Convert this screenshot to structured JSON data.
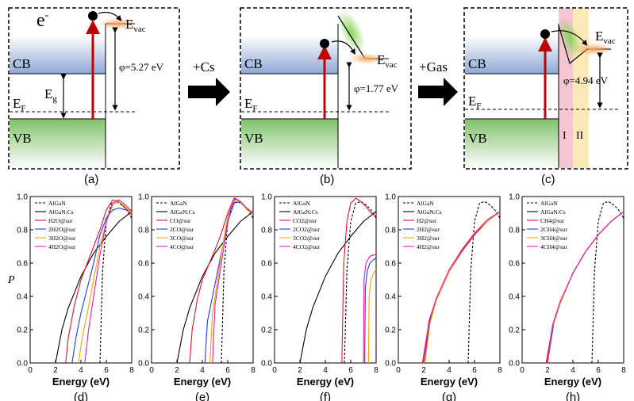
{
  "diagrams": {
    "a": {
      "caption": "(a)",
      "cb": "CB",
      "vb": "VB",
      "electron": "e",
      "electron_sup": "-",
      "evac_main": "E",
      "evac_sub": "vac",
      "ef_main": "E",
      "ef_sub": "F",
      "eg_main": "E",
      "eg_sub": "g",
      "phi": "φ=5.27 eV"
    },
    "b": {
      "caption": "(b)",
      "cb": "CB",
      "vb": "VB",
      "evac_main": "E",
      "evac_sub": "vac",
      "ef_main": "E",
      "ef_sub": "F",
      "phi": "φ=1.77 eV"
    },
    "c": {
      "caption": "(c)",
      "cb": "CB",
      "vb": "VB",
      "evac_main": "E",
      "evac_sub": "vac",
      "ef_main": "E",
      "ef_sub": "F",
      "phi": "φ=4.94 eV",
      "region1": "I",
      "region2": "II"
    },
    "arrow1_label": "+Cs",
    "arrow2_label": "+Gas"
  },
  "colors": {
    "cb_band": "#8ea9d6",
    "vb_band": "#8cc97a",
    "excitation_arrow": "#c00000",
    "evac_glow": "#f6a25a",
    "region1_fill": "#f2b8c6",
    "region2_fill": "#fbe3a6",
    "series_black": "#000000",
    "series_red": "#e8112d",
    "series_blue": "#1f3df0",
    "series_orange": "#f5a300",
    "series_magenta": "#e81bb0"
  },
  "chart_data": [
    {
      "type": "line",
      "panel": "d",
      "caption": "(d)",
      "xlabel": "Energy (eV)",
      "ylabel": "P",
      "xlim": [
        0,
        8
      ],
      "ylim": [
        0,
        1.0
      ],
      "xticks": [
        "0",
        "2",
        "4",
        "6",
        "8"
      ],
      "yticks": [
        "0.0",
        "0.2",
        "0.4",
        "0.6",
        "0.8",
        "1.0"
      ],
      "legend": [
        "AlGaN",
        "AlGaN:Cs",
        "H2O@sur",
        "2H2O@sur",
        "3H2O@sur",
        "4H2O@sur"
      ],
      "series": [
        {
          "name": "AlGaN",
          "style": "dashed",
          "color": "#000000",
          "x": [
            5.5,
            5.7,
            6.0,
            6.4,
            6.8,
            7.2,
            7.6,
            8.0
          ],
          "y": [
            0.0,
            0.55,
            0.85,
            0.96,
            0.97,
            0.95,
            0.92,
            0.87
          ]
        },
        {
          "name": "AlGaN:Cs",
          "color": "#000000",
          "x": [
            2.0,
            2.5,
            3.0,
            4.0,
            5.0,
            6.0,
            7.0,
            8.0
          ],
          "y": [
            0.0,
            0.2,
            0.33,
            0.52,
            0.66,
            0.76,
            0.85,
            0.91
          ]
        },
        {
          "name": "H2O@sur",
          "color": "#e8112d",
          "x": [
            2.8,
            3.0,
            3.5,
            4.0,
            5.0,
            5.5,
            6.0,
            6.5,
            7.0,
            7.5,
            8.0
          ],
          "y": [
            0.0,
            0.15,
            0.35,
            0.5,
            0.7,
            0.8,
            0.92,
            0.98,
            0.97,
            0.93,
            0.89
          ]
        },
        {
          "name": "2H2O@sur",
          "color": "#1f3df0",
          "x": [
            3.3,
            3.6,
            4.0,
            5.0,
            5.5,
            6.0,
            6.5,
            7.0,
            7.5,
            8.0
          ],
          "y": [
            0.0,
            0.15,
            0.3,
            0.6,
            0.77,
            0.87,
            0.92,
            0.93,
            0.92,
            0.92
          ]
        },
        {
          "name": "3H2O@sur",
          "color": "#f5a300",
          "x": [
            3.8,
            4.1,
            4.5,
            5.0,
            5.5,
            6.0,
            6.5,
            7.0,
            7.5,
            8.0
          ],
          "y": [
            0.0,
            0.15,
            0.3,
            0.5,
            0.7,
            0.85,
            0.95,
            0.97,
            0.94,
            0.9
          ]
        },
        {
          "name": "4H2O@sur",
          "color": "#e81bb0",
          "x": [
            4.3,
            4.6,
            5.0,
            5.5,
            6.0,
            6.5,
            7.0,
            7.5,
            8.0
          ],
          "y": [
            0.0,
            0.2,
            0.4,
            0.65,
            0.85,
            0.96,
            0.98,
            0.95,
            0.91
          ]
        }
      ]
    },
    {
      "type": "line",
      "panel": "e",
      "caption": "(e)",
      "xlabel": "Energy (eV)",
      "ylabel": "",
      "xlim": [
        0,
        8
      ],
      "ylim": [
        0,
        1.0
      ],
      "xticks": [
        "0",
        "2",
        "4",
        "6",
        "8"
      ],
      "yticks": [
        "0.0",
        "0.2",
        "0.4",
        "0.6",
        "0.8",
        "1.0"
      ],
      "legend": [
        "AlGaN",
        "AlGaN:Cs",
        "CO@sur",
        "2CO@sur",
        "3CO@sur",
        "4CO@sur"
      ],
      "series": [
        {
          "name": "AlGaN",
          "style": "dashed",
          "color": "#000000",
          "x": [
            5.5,
            5.7,
            6.0,
            6.4,
            6.8,
            7.2,
            7.6,
            8.0
          ],
          "y": [
            0.0,
            0.55,
            0.85,
            0.96,
            0.97,
            0.95,
            0.92,
            0.87
          ]
        },
        {
          "name": "AlGaN:Cs",
          "color": "#000000",
          "x": [
            2.0,
            2.5,
            3.0,
            4.0,
            5.0,
            6.0,
            7.0,
            8.0
          ],
          "y": [
            0.0,
            0.2,
            0.33,
            0.52,
            0.66,
            0.76,
            0.85,
            0.91
          ]
        },
        {
          "name": "CO@sur",
          "color": "#e8112d",
          "x": [
            3.0,
            3.2,
            3.6,
            4.0,
            5.0,
            5.5,
            6.0,
            6.5,
            7.0,
            7.5,
            8.0
          ],
          "y": [
            0.0,
            0.2,
            0.38,
            0.5,
            0.68,
            0.78,
            0.9,
            0.99,
            0.97,
            0.93,
            0.9
          ]
        },
        {
          "name": "2CO@sur",
          "color": "#1f3df0",
          "x": [
            4.2,
            4.4,
            4.8,
            5.2,
            5.6,
            6.0,
            6.5,
            7.0,
            7.5,
            8.0
          ],
          "y": [
            0.0,
            0.25,
            0.4,
            0.55,
            0.7,
            0.85,
            0.96,
            0.97,
            0.93,
            0.9
          ]
        },
        {
          "name": "3CO@sur",
          "color": "#f5a300",
          "x": [
            4.6,
            4.8,
            5.2,
            5.6,
            6.0,
            6.5,
            7.0,
            7.5,
            8.0
          ],
          "y": [
            0.0,
            0.3,
            0.5,
            0.7,
            0.88,
            0.98,
            0.97,
            0.92,
            0.9
          ]
        },
        {
          "name": "4CO@sur",
          "color": "#e81bb0",
          "x": [
            4.8,
            5.0,
            5.4,
            5.8,
            6.2,
            6.6,
            7.0,
            7.5,
            8.0
          ],
          "y": [
            0.0,
            0.35,
            0.55,
            0.75,
            0.92,
            0.99,
            0.97,
            0.93,
            0.9
          ]
        }
      ]
    },
    {
      "type": "line",
      "panel": "f",
      "caption": "(f)",
      "xlabel": "Energy (eV)",
      "ylabel": "",
      "xlim": [
        0,
        8
      ],
      "ylim": [
        0,
        1.0
      ],
      "xticks": [
        "0",
        "2",
        "4",
        "6",
        "8"
      ],
      "yticks": [
        "0.0",
        "0.2",
        "0.4",
        "0.6",
        "0.8",
        "1.0"
      ],
      "legend": [
        "AlGaN",
        "AlGaN:Cs",
        "CO2@sur",
        "2CO2@sur",
        "3CO2@sur",
        "4CO2@sur"
      ],
      "series": [
        {
          "name": "AlGaN",
          "style": "dashed",
          "color": "#000000",
          "x": [
            5.5,
            5.7,
            6.0,
            6.4,
            6.8,
            7.2,
            7.6,
            8.0
          ],
          "y": [
            0.0,
            0.55,
            0.85,
            0.96,
            0.97,
            0.95,
            0.92,
            0.87
          ]
        },
        {
          "name": "AlGaN:Cs",
          "color": "#000000",
          "x": [
            2.0,
            2.5,
            3.0,
            4.0,
            5.0,
            6.0,
            7.0,
            8.0
          ],
          "y": [
            0.0,
            0.2,
            0.33,
            0.52,
            0.66,
            0.76,
            0.85,
            0.91
          ]
        },
        {
          "name": "CO2@sur",
          "color": "#e8112d",
          "x": [
            5.3,
            5.45,
            5.7,
            6.0,
            6.4,
            6.8,
            7.2,
            7.6,
            8.0
          ],
          "y": [
            0.0,
            0.6,
            0.85,
            0.96,
            0.99,
            0.97,
            0.94,
            0.9,
            0.88
          ]
        },
        {
          "name": "2CO2@sur",
          "color": "#1f3df0",
          "x": [
            7.1,
            7.15,
            7.3,
            7.5,
            7.8,
            8.0
          ],
          "y": [
            0.0,
            0.45,
            0.55,
            0.6,
            0.62,
            0.63
          ]
        },
        {
          "name": "3CO2@sur",
          "color": "#f5a300",
          "x": [
            7.4,
            7.45,
            7.6,
            7.8,
            8.0
          ],
          "y": [
            0.0,
            0.4,
            0.5,
            0.54,
            0.56
          ]
        },
        {
          "name": "4CO2@sur",
          "color": "#e81bb0",
          "x": [
            7.0,
            7.05,
            7.2,
            7.5,
            7.8,
            8.0
          ],
          "y": [
            0.0,
            0.5,
            0.6,
            0.64,
            0.65,
            0.65
          ]
        }
      ]
    },
    {
      "type": "line",
      "panel": "g",
      "caption": "(g)",
      "xlabel": "Energy (eV)",
      "ylabel": "",
      "xlim": [
        0,
        8
      ],
      "ylim": [
        0,
        1.0
      ],
      "xticks": [
        "0",
        "2",
        "4",
        "6",
        "8"
      ],
      "yticks": [
        "0.0",
        "0.2",
        "0.4",
        "0.6",
        "0.8",
        "1.0"
      ],
      "legend": [
        "AlGaN",
        "AlGaN:Cs",
        "H2@sur",
        "2H2@sur",
        "3H2@sur",
        "4H2@sur"
      ],
      "series": [
        {
          "name": "AlGaN",
          "style": "dashed",
          "color": "#000000",
          "x": [
            5.5,
            5.7,
            6.0,
            6.4,
            6.8,
            7.2,
            7.6,
            8.0
          ],
          "y": [
            0.0,
            0.55,
            0.85,
            0.96,
            0.97,
            0.95,
            0.92,
            0.87
          ]
        },
        {
          "name": "AlGaN:Cs",
          "color": "#000000",
          "x": [
            2.0,
            2.5,
            3.0,
            4.0,
            5.0,
            6.0,
            7.0,
            8.0
          ],
          "y": [
            0.0,
            0.25,
            0.38,
            0.55,
            0.67,
            0.77,
            0.85,
            0.91
          ]
        },
        {
          "name": "H2@sur",
          "color": "#e8112d",
          "x": [
            1.9,
            2.4,
            3.0,
            4.0,
            5.0,
            6.0,
            7.0,
            8.0
          ],
          "y": [
            0.0,
            0.24,
            0.38,
            0.55,
            0.67,
            0.77,
            0.85,
            0.91
          ]
        },
        {
          "name": "2H2@sur",
          "color": "#1f3df0",
          "x": [
            2.0,
            2.5,
            3.0,
            4.0,
            5.0,
            6.0,
            7.0,
            8.0
          ],
          "y": [
            0.0,
            0.25,
            0.38,
            0.55,
            0.68,
            0.78,
            0.86,
            0.91
          ]
        },
        {
          "name": "3H2@sur",
          "color": "#f5a300",
          "x": [
            2.1,
            2.5,
            3.0,
            4.0,
            5.0,
            6.0,
            7.0,
            8.0
          ],
          "y": [
            0.0,
            0.24,
            0.38,
            0.55,
            0.68,
            0.78,
            0.85,
            0.91
          ]
        },
        {
          "name": "4H2@sur",
          "color": "#e81bb0",
          "x": [
            2.0,
            2.4,
            3.0,
            4.0,
            5.0,
            6.0,
            7.0,
            8.0
          ],
          "y": [
            0.0,
            0.25,
            0.39,
            0.56,
            0.68,
            0.78,
            0.86,
            0.91
          ]
        }
      ]
    },
    {
      "type": "line",
      "panel": "h",
      "caption": "(h)",
      "xlabel": "Energy (eV)",
      "ylabel": "",
      "xlim": [
        0,
        8
      ],
      "ylim": [
        0,
        1.0
      ],
      "xticks": [
        "0",
        "2",
        "4",
        "6",
        "8"
      ],
      "yticks": [
        "0.0",
        "0.2",
        "0.4",
        "0.6",
        "0.8",
        "1.0"
      ],
      "legend": [
        "AlGaN",
        "AlGaN:Cs",
        "CH4@sur",
        "2CH4@sur",
        "3CH4@sur",
        "4CH4@sur"
      ],
      "series": [
        {
          "name": "AlGaN",
          "style": "dashed",
          "color": "#000000",
          "x": [
            5.5,
            5.7,
            6.0,
            6.4,
            6.8,
            7.2,
            7.6,
            8.0
          ],
          "y": [
            0.0,
            0.55,
            0.85,
            0.96,
            0.97,
            0.95,
            0.92,
            0.87
          ]
        },
        {
          "name": "AlGaN:Cs",
          "color": "#000000",
          "x": [
            1.9,
            2.4,
            3.0,
            4.0,
            5.0,
            6.0,
            7.0,
            8.0
          ],
          "y": [
            0.0,
            0.22,
            0.36,
            0.54,
            0.67,
            0.77,
            0.85,
            0.91
          ]
        },
        {
          "name": "CH4@sur",
          "color": "#e8112d",
          "x": [
            1.9,
            2.4,
            3.0,
            4.0,
            5.0,
            6.0,
            7.0,
            8.0
          ],
          "y": [
            0.0,
            0.22,
            0.36,
            0.54,
            0.67,
            0.77,
            0.85,
            0.91
          ]
        },
        {
          "name": "2CH4@sur",
          "color": "#1f3df0",
          "x": [
            2.0,
            2.5,
            3.0,
            4.0,
            5.0,
            6.0,
            7.0,
            8.0
          ],
          "y": [
            0.0,
            0.24,
            0.36,
            0.54,
            0.67,
            0.77,
            0.85,
            0.91
          ]
        },
        {
          "name": "3CH4@sur",
          "color": "#f5a300",
          "x": [
            2.0,
            2.4,
            3.0,
            4.0,
            5.0,
            6.0,
            7.0,
            8.0
          ],
          "y": [
            0.0,
            0.22,
            0.36,
            0.54,
            0.67,
            0.77,
            0.85,
            0.91
          ]
        },
        {
          "name": "4CH4@sur",
          "color": "#e81bb0",
          "x": [
            2.0,
            2.4,
            3.0,
            4.0,
            5.0,
            6.0,
            7.0,
            8.0
          ],
          "y": [
            0.0,
            0.23,
            0.37,
            0.54,
            0.67,
            0.77,
            0.85,
            0.91
          ]
        }
      ]
    }
  ]
}
